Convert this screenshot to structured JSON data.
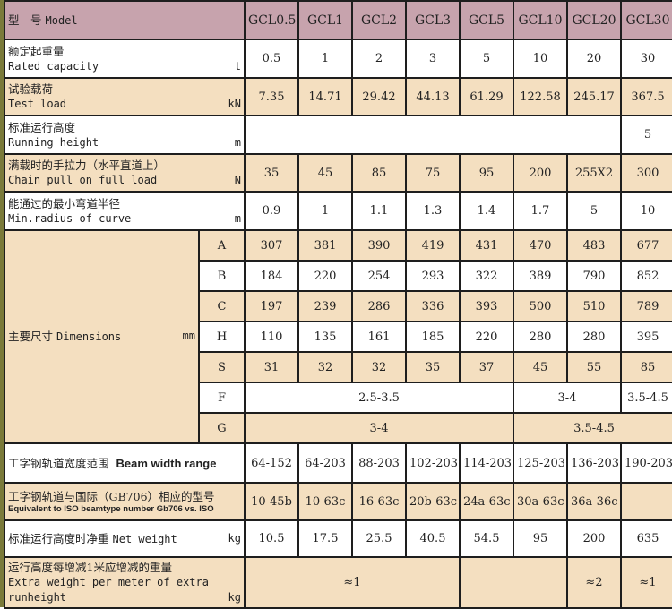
{
  "header": {
    "label_cn": "型　号",
    "label_en": "Model",
    "models": [
      "GCL0.5",
      "GCL1",
      "GCL2",
      "GCL3",
      "GCL5",
      "GCL10",
      "GCL20",
      "GCL30"
    ]
  },
  "rows": {
    "rated": {
      "cn": "额定起重量",
      "en": "Rated capacity",
      "unit": "t",
      "values": [
        "0.5",
        "1",
        "2",
        "3",
        "5",
        "10",
        "20",
        "30"
      ]
    },
    "test": {
      "cn": "试验载荷",
      "en": "Test load",
      "unit": "kN",
      "values": [
        "7.35",
        "14.71",
        "29.42",
        "44.13",
        "61.29",
        "122.58",
        "245.17",
        "367.5"
      ]
    },
    "running": {
      "cn": "标准运行高度",
      "en": "Running height",
      "unit": "m",
      "value_gcl30": "5"
    },
    "chain": {
      "cn": "满载时的手拉力（水平直道上）",
      "en": "Chain pull on full load",
      "unit": "N",
      "values": [
        "35",
        "45",
        "85",
        "75",
        "95",
        "200",
        "255X2",
        "300"
      ]
    },
    "radius": {
      "cn": "能通过的最小弯道半径",
      "en": "Min.radius of curve",
      "unit": "m",
      "values": [
        "0.9",
        "1",
        "1.1",
        "1.3",
        "1.4",
        "1.7",
        "5",
        "10"
      ]
    },
    "dimensions": {
      "cn": "主要尺寸",
      "en": "Dimensions",
      "unit": "mm",
      "A": [
        "307",
        "381",
        "390",
        "419",
        "431",
        "470",
        "483",
        "677"
      ],
      "B": [
        "184",
        "220",
        "254",
        "293",
        "322",
        "389",
        "790",
        "852"
      ],
      "C": [
        "197",
        "239",
        "286",
        "336",
        "393",
        "500",
        "510",
        "789"
      ],
      "H": [
        "110",
        "135",
        "161",
        "185",
        "220",
        "280",
        "280",
        "395"
      ],
      "S": [
        "31",
        "32",
        "32",
        "35",
        "37",
        "45",
        "55",
        "85"
      ],
      "F": [
        "2.5-3.5",
        "3-4",
        "3.5-4.5"
      ],
      "G": [
        "3-4",
        "3.5-4.5"
      ]
    },
    "beam": {
      "cn": "工字钢轨道宽度范围",
      "en": "Beam width range",
      "values": [
        "64-152",
        "64-203",
        "88-203",
        "102-203",
        "114-203",
        "125-203",
        "136-203",
        "190-203"
      ]
    },
    "equivalent": {
      "cn": "工字钢轨道与国际（GB706）相应的型号",
      "en": "Equivalent to ISO beamtype number Gb706 vs. ISO",
      "values": [
        "10-45b",
        "10-63c",
        "16-63c",
        "20b-63c",
        "24a-63c",
        "30a-63c",
        "36a-36c",
        "——"
      ]
    },
    "net": {
      "cn": "标准运行高度时净重",
      "en": "Net weight",
      "unit": "kg",
      "values": [
        "10.5",
        "17.5",
        "25.5",
        "40.5",
        "54.5",
        "95",
        "200",
        "635"
      ]
    },
    "extra": {
      "cn": "运行高度每增减1米应增减的重量",
      "en1": "Extra weight per meter of extra",
      "en2": "runheight",
      "unit": "kg",
      "values": [
        "≈1",
        "≈2",
        "≈1"
      ]
    }
  },
  "colors": {
    "header": "#c7a3ad",
    "shaded": "#f4dfc0",
    "border": "#1e1e1e"
  }
}
